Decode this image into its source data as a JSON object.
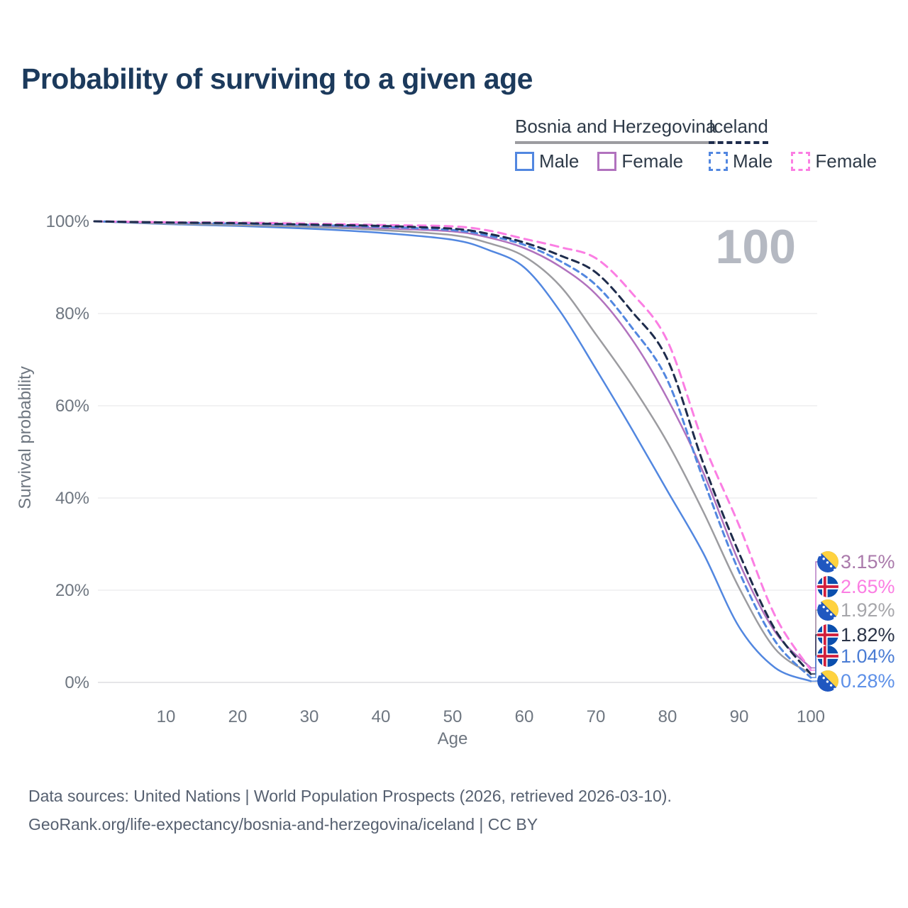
{
  "title": "Probability of surviving to a given age",
  "legend": {
    "groups": [
      {
        "name": "Bosnia and Herzegovina",
        "line_style": "solid",
        "underline_color": "#9c9ca0",
        "items": [
          {
            "label": "Male",
            "color": "#5287e0",
            "dashed": false
          },
          {
            "label": "Female",
            "color": "#b172be",
            "dashed": false
          }
        ]
      },
      {
        "name": "Iceland",
        "line_style": "dashed",
        "underline_color": "#1e2c4c",
        "items": [
          {
            "label": "Male",
            "color": "#5287e0",
            "dashed": true
          },
          {
            "label": "Female",
            "color": "#fb7ee3",
            "dashed": true
          }
        ]
      }
    ]
  },
  "chart_data": {
    "type": "line",
    "title": "Probability of surviving to a given age",
    "xlabel": "Age",
    "ylabel": "Survival probability",
    "xlim": [
      0,
      100
    ],
    "ylim": [
      0,
      100
    ],
    "grid": true,
    "legend_position": "top-right",
    "age_watermark": "100",
    "x_ticks": [
      10,
      20,
      30,
      40,
      50,
      60,
      70,
      80,
      90,
      100
    ],
    "y_tick_values": [
      0,
      20,
      40,
      60,
      80,
      100
    ],
    "y_tick_labels": [
      "0%",
      "20%",
      "40%",
      "60%",
      "80%",
      "100%"
    ],
    "x": [
      0,
      10,
      20,
      30,
      40,
      50,
      55,
      60,
      65,
      70,
      75,
      80,
      85,
      90,
      95,
      100
    ],
    "series": [
      {
        "name": "Bosnia and Herzegovina — Male",
        "country": "Bosnia and Herzegovina",
        "sex": "Male",
        "color": "#5287e0",
        "dashed": false,
        "flag": "bosnia-and-herzegovina",
        "end_label": "0.28%",
        "end_value": 0.28,
        "end_label_color": "#5d90e8",
        "values": [
          100,
          99.4,
          99.0,
          98.4,
          97.5,
          96.0,
          93.8,
          90.0,
          80.5,
          68.0,
          55.0,
          41.5,
          28.0,
          12.0,
          3.2,
          0.28
        ]
      },
      {
        "name": "Bosnia and Herzegovina — Female",
        "country": "Bosnia and Herzegovina",
        "sex": "Female",
        "color": "#b172be",
        "dashed": false,
        "flag": "bosnia-and-herzegovina",
        "end_label": "3.15%",
        "end_value": 3.15,
        "end_label_color": "#aa7aab",
        "values": [
          100,
          99.6,
          99.4,
          99.0,
          98.5,
          97.8,
          96.5,
          94.2,
          90.2,
          84.2,
          74.5,
          61.5,
          45.5,
          26.0,
          11.0,
          3.15
        ]
      },
      {
        "name": "Bosnia and Herzegovina — Both sexes",
        "country": "Bosnia and Herzegovina",
        "sex": "Both",
        "color": "#9c9ca0",
        "dashed": false,
        "flag": "bosnia-and-herzegovina",
        "end_label": "1.92%",
        "end_value": 1.92,
        "end_label_color": "#a6a6aa",
        "values": [
          100,
          99.5,
          99.2,
          98.8,
          98.1,
          97.0,
          95.3,
          92.4,
          86.0,
          75.5,
          64.5,
          52.0,
          37.0,
          20.5,
          7.3,
          1.92
        ]
      },
      {
        "name": "Iceland — Male",
        "country": "Iceland",
        "sex": "Male",
        "color": "#5287e0",
        "dashed": true,
        "flag": "iceland",
        "end_label": "1.04%",
        "end_value": 1.04,
        "end_label_color": "#4a7cd4",
        "values": [
          100,
          99.7,
          99.5,
          99.2,
          98.8,
          98.1,
          96.9,
          94.9,
          91.4,
          86.2,
          77.0,
          65.5,
          44.0,
          24.0,
          9.0,
          1.04
        ]
      },
      {
        "name": "Iceland — Female",
        "country": "Iceland",
        "sex": "Female",
        "color": "#fb7ee3",
        "dashed": true,
        "flag": "iceland",
        "end_label": "2.65%",
        "end_value": 2.65,
        "end_label_color": "#fb7ee3",
        "values": [
          100,
          99.8,
          99.7,
          99.5,
          99.2,
          98.9,
          98.0,
          96.2,
          94.4,
          92.0,
          84.5,
          74.0,
          52.0,
          34.0,
          14.5,
          2.65
        ]
      },
      {
        "name": "Iceland — Both sexes",
        "country": "Iceland",
        "sex": "Both",
        "color": "#1e2c4c",
        "dashed": true,
        "flag": "iceland",
        "end_label": "1.82%",
        "end_value": 1.82,
        "end_label_color": "#2b3448",
        "values": [
          100,
          99.75,
          99.6,
          99.3,
          99.0,
          98.4,
          97.3,
          95.4,
          92.6,
          88.9,
          80.5,
          70.0,
          47.5,
          28.0,
          11.5,
          1.82
        ]
      }
    ]
  },
  "footer": {
    "line1": "Data sources: United Nations | World Population Prospects (2026, retrieved 2026-03-10).",
    "line2": "GeoRank.org/life-expectancy/bosnia-and-herzegovina/iceland | CC BY"
  }
}
